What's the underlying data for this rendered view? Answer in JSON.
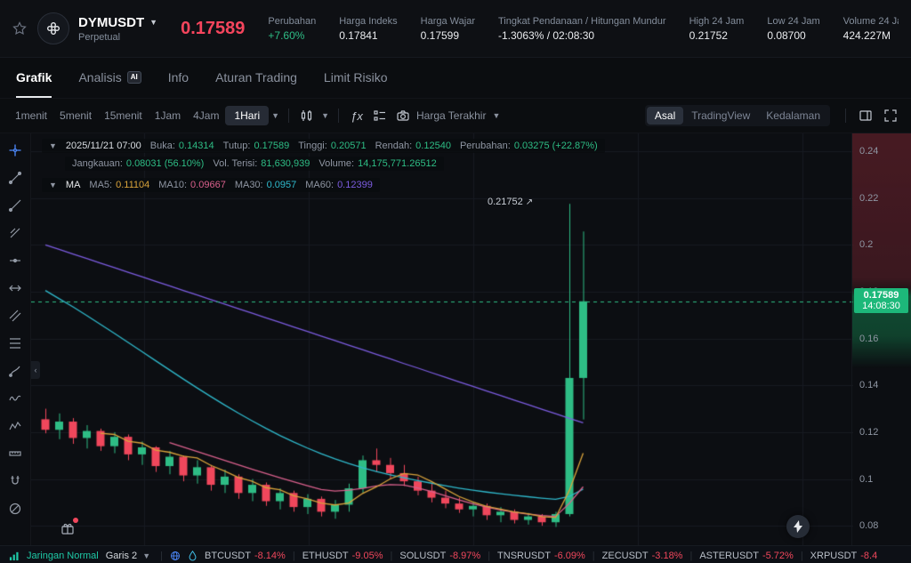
{
  "colors": {
    "accent_green": "#2EBD85",
    "accent_red": "#F0475C",
    "price_red": "#F6455D",
    "tag_green": "#1DB87A",
    "ma5": "#D9A33B",
    "ma10": "#D9608C",
    "ma30": "#2FB9CC",
    "ma60": "#7C5CE0",
    "link_teal": "#1EC9A6",
    "tool_active_blue": "#4E8BFF"
  },
  "header": {
    "symbol": "DYMUSDT",
    "market_type": "Perpetual",
    "last_price": "0.17589",
    "stats": [
      {
        "label": "Perubahan",
        "value": "+7.60%",
        "color": "green"
      },
      {
        "label": "Harga Indeks",
        "value": "0.17841"
      },
      {
        "label": "Harga Wajar",
        "value": "0.17599"
      },
      {
        "label": "Tingkat Pendanaan / Hitungan Mundur",
        "value": "-1.3063% / 02:08:30"
      },
      {
        "label": "High 24 Jam",
        "value": "0.21752"
      },
      {
        "label": "Low 24 Jam",
        "value": "0.08700"
      },
      {
        "label": "Volume 24 Jam",
        "value": "424.227M"
      }
    ]
  },
  "tabs": [
    {
      "label": "Grafik",
      "active": true
    },
    {
      "label": "Analisis",
      "badge": "AI"
    },
    {
      "label": "Info"
    },
    {
      "label": "Aturan Trading"
    },
    {
      "label": "Limit Risiko"
    }
  ],
  "toolbar": {
    "timeframes": [
      {
        "label": "1menit"
      },
      {
        "label": "5menit"
      },
      {
        "label": "15menit"
      },
      {
        "label": "1Jam"
      },
      {
        "label": "4Jam"
      },
      {
        "label": "1Hari",
        "active": true
      }
    ],
    "price_mode": "Harga Terakhir",
    "view_modes": [
      {
        "label": "Asal",
        "active": true
      },
      {
        "label": "TradingView"
      },
      {
        "label": "Kedalaman"
      }
    ]
  },
  "chart": {
    "info_row1": {
      "date": "2025/11/21 07:00",
      "pairs": [
        {
          "label": "Buka:",
          "value": "0.14314"
        },
        {
          "label": "Tutup:",
          "value": "0.17589"
        },
        {
          "label": "Tinggi:",
          "value": "0.20571"
        },
        {
          "label": "Rendah:",
          "value": "0.12540"
        },
        {
          "label": "Perubahan:",
          "value": "0.03275 (+22.87%)"
        }
      ]
    },
    "info_row2": {
      "pairs": [
        {
          "label": "Jangkauan:",
          "value": "0.08031 (56.10%)"
        },
        {
          "label": "Vol. Terisi:",
          "value": "81,630,939"
        },
        {
          "label": "Volume:",
          "value": "14,175,771.26512"
        }
      ]
    },
    "ma_row": {
      "prefix": "MA",
      "pairs": [
        {
          "label": "MA5:",
          "value": "0.11104",
          "color": "#D9A33B"
        },
        {
          "label": "MA10:",
          "value": "0.09667",
          "color": "#D9608C"
        },
        {
          "label": "MA30:",
          "value": "0.0957",
          "color": "#2FB9CC"
        },
        {
          "label": "MA60:",
          "value": "0.12399",
          "color": "#7C5CE0"
        }
      ]
    },
    "annotation": {
      "text": "0.21752"
    },
    "price_tag": {
      "price": "0.17589",
      "countdown": "14:08:30"
    },
    "y_axis_labels": [
      "0.24",
      "0.22",
      "0.2",
      "0.18",
      "0.16",
      "0.14",
      "0.12",
      "0.1",
      "0.08"
    ],
    "tools": [
      "crosshair",
      "trend-line",
      "ray",
      "multi-line",
      "horizontal-line",
      "arrow",
      "channel",
      "fib-retracement",
      "brush",
      "waves",
      "pattern",
      "ruler",
      "magnet",
      "hide-drawings"
    ],
    "chart_data": {
      "type": "candlestick",
      "symbol": "DYMUSDT",
      "interval": "1Hari",
      "ylim": [
        0.0717,
        0.2476
      ],
      "grid_prices": [
        0.08,
        0.1,
        0.12,
        0.14,
        0.16,
        0.18,
        0.2,
        0.22,
        0.24
      ],
      "current_price": 0.17589,
      "high_annotation": 0.21752,
      "candles": [
        [
          0.1255,
          0.13,
          0.1195,
          0.121
        ],
        [
          0.121,
          0.128,
          0.117,
          0.1245
        ],
        [
          0.1245,
          0.126,
          0.115,
          0.1175
        ],
        [
          0.1175,
          0.123,
          0.113,
          0.1205
        ],
        [
          0.1205,
          0.1215,
          0.112,
          0.114
        ],
        [
          0.114,
          0.12,
          0.111,
          0.118
        ],
        [
          0.118,
          0.119,
          0.108,
          0.1105
        ],
        [
          0.1105,
          0.116,
          0.106,
          0.1135
        ],
        [
          0.1135,
          0.114,
          0.103,
          0.1055
        ],
        [
          0.1055,
          0.112,
          0.102,
          0.1095
        ],
        [
          0.1095,
          0.11,
          0.099,
          0.1015
        ],
        [
          0.1015,
          0.108,
          0.098,
          0.105
        ],
        [
          0.105,
          0.106,
          0.095,
          0.0975
        ],
        [
          0.0975,
          0.104,
          0.094,
          0.101
        ],
        [
          0.101,
          0.102,
          0.0915,
          0.094
        ],
        [
          0.094,
          0.1,
          0.0905,
          0.0975
        ],
        [
          0.0975,
          0.0985,
          0.0885,
          0.0905
        ],
        [
          0.0905,
          0.096,
          0.087,
          0.094
        ],
        [
          0.094,
          0.095,
          0.086,
          0.088
        ],
        [
          0.088,
          0.0935,
          0.085,
          0.0915
        ],
        [
          0.0915,
          0.0925,
          0.084,
          0.086
        ],
        [
          0.086,
          0.091,
          0.083,
          0.089
        ],
        [
          0.089,
          0.098,
          0.086,
          0.096
        ],
        [
          0.096,
          0.11,
          0.094,
          0.108
        ],
        [
          0.108,
          0.113,
          0.103,
          0.106
        ],
        [
          0.106,
          0.109,
          0.1,
          0.1025
        ],
        [
          0.1025,
          0.106,
          0.097,
          0.099
        ],
        [
          0.099,
          0.101,
          0.093,
          0.095
        ],
        [
          0.095,
          0.098,
          0.09,
          0.092
        ],
        [
          0.092,
          0.095,
          0.0875,
          0.0895
        ],
        [
          0.0895,
          0.092,
          0.0855,
          0.087
        ],
        [
          0.087,
          0.09,
          0.084,
          0.0885
        ],
        [
          0.0885,
          0.0895,
          0.0825,
          0.0845
        ],
        [
          0.0845,
          0.088,
          0.0815,
          0.086
        ],
        [
          0.086,
          0.087,
          0.081,
          0.0825
        ],
        [
          0.0825,
          0.0855,
          0.0805,
          0.084
        ],
        [
          0.084,
          0.085,
          0.08,
          0.0815
        ],
        [
          0.0815,
          0.086,
          0.0795,
          0.085
        ],
        [
          0.085,
          0.21752,
          0.084,
          0.14314
        ],
        [
          0.14314,
          0.20571,
          0.1254,
          0.17589
        ]
      ],
      "ma": {
        "ma5": [
          null,
          null,
          null,
          null,
          0.1195,
          0.119,
          0.1161,
          0.1153,
          0.1123,
          0.1114,
          0.1097,
          0.109,
          0.1058,
          0.1034,
          0.1006,
          0.099,
          0.0963,
          0.0954,
          0.0928,
          0.0915,
          0.0897,
          0.0889,
          0.0897,
          0.0938,
          0.0966,
          0.1,
          0.1023,
          0.1017,
          0.0989,
          0.0957,
          0.0925,
          0.0902,
          0.0883,
          0.0871,
          0.0859,
          0.0851,
          0.0839,
          0.0835,
          0.0951,
          0.11104
        ],
        "ma10": [
          null,
          null,
          null,
          null,
          null,
          null,
          null,
          null,
          null,
          0.1155,
          0.1136,
          0.1117,
          0.1098,
          0.1079,
          0.106,
          0.1041,
          0.1023,
          0.1005,
          0.0988,
          0.0971,
          0.0955,
          0.0948,
          0.0952,
          0.096,
          0.097,
          0.0976,
          0.0974,
          0.0962,
          0.0946,
          0.0928,
          0.091,
          0.0894,
          0.088,
          0.0868,
          0.0858,
          0.085,
          0.0844,
          0.084,
          0.0896,
          0.09667
        ],
        "ma30": [
          0.1805,
          0.177,
          0.1735,
          0.1698,
          0.166,
          0.1622,
          0.1583,
          0.1544,
          0.1505,
          0.1466,
          0.1427,
          0.1389,
          0.1352,
          0.1316,
          0.1281,
          0.1248,
          0.1216,
          0.1186,
          0.1158,
          0.1132,
          0.1108,
          0.1086,
          0.1066,
          0.1048,
          0.1032,
          0.1018,
          0.1005,
          0.0993,
          0.0982,
          0.0971,
          0.0961,
          0.0952,
          0.0944,
          0.0937,
          0.093,
          0.0924,
          0.0918,
          0.0913,
          0.0925,
          0.0957
        ],
        "ma60": [
          0.2,
          0.1981,
          0.1961,
          0.1942,
          0.1922,
          0.1903,
          0.1883,
          0.1864,
          0.1844,
          0.1825,
          0.1805,
          0.1786,
          0.1766,
          0.1747,
          0.1727,
          0.1708,
          0.1688,
          0.1669,
          0.1649,
          0.163,
          0.161,
          0.1591,
          0.1571,
          0.1552,
          0.1532,
          0.1513,
          0.1493,
          0.1474,
          0.1454,
          0.1435,
          0.1415,
          0.1396,
          0.1376,
          0.1357,
          0.1337,
          0.1318,
          0.1298,
          0.1279,
          0.1259,
          0.12399
        ]
      }
    }
  },
  "bottom_bar": {
    "network_status": "Jaringan Normal",
    "line_mode": "Garis 2",
    "tickers": [
      {
        "symbol": "BTCUSDT",
        "change": "-8.14%"
      },
      {
        "symbol": "ETHUSDT",
        "change": "-9.05%"
      },
      {
        "symbol": "SOLUSDT",
        "change": "-8.97%"
      },
      {
        "symbol": "TNSRUSDT",
        "change": "-6.09%"
      },
      {
        "symbol": "ZECUSDT",
        "change": "-3.18%"
      },
      {
        "symbol": "ASTERUSDT",
        "change": "-5.72%"
      },
      {
        "symbol": "XRPUSDT",
        "change": "-8.4"
      }
    ]
  }
}
